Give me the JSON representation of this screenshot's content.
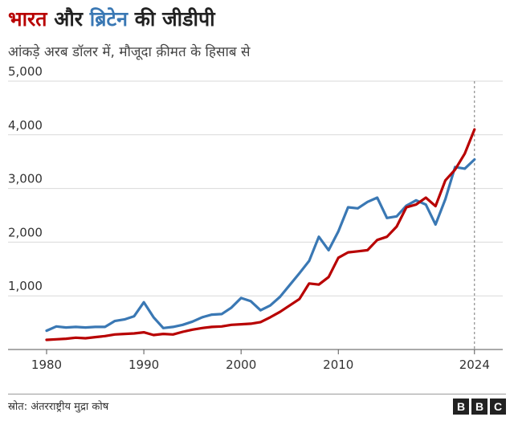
{
  "header": {
    "title_parts": [
      {
        "text": "भारत",
        "color": "#b80000"
      },
      {
        "text": " और ",
        "color": "#222222"
      },
      {
        "text": "ब्रिटेन",
        "color": "#3a78b4"
      },
      {
        "text": " की जीडीपी",
        "color": "#222222"
      }
    ],
    "subtitle": "आंकड़े अरब डॉलर में, मौजूदा क़ीमत के हिसाब से"
  },
  "footer": {
    "source": "स्रोत: अंतरराष्ट्रीय मुद्रा कोष",
    "logo_letters": [
      "B",
      "B",
      "C"
    ]
  },
  "chart_data": {
    "type": "line",
    "title": "भारत और ब्रिटेन की जीडीपी",
    "subtitle": "आंकड़े अरब डॉलर में, मौजूदा क़ीमत के हिसाब से",
    "xlabel": "",
    "ylabel": "",
    "xlim": [
      1980,
      2026
    ],
    "ylim": [
      0,
      5000
    ],
    "x_ticks": [
      1980,
      1990,
      2000,
      2010,
      2024
    ],
    "x_tick_labels": [
      "1980",
      "1990",
      "2000",
      "2010",
      "2024"
    ],
    "y_ticks": [
      1000,
      2000,
      3000,
      4000,
      5000
    ],
    "y_tick_labels": [
      "1,000",
      "2,000",
      "3,000",
      "4,000",
      "5,000"
    ],
    "grid": true,
    "reference_line": {
      "x": 2024,
      "style": "dashed"
    },
    "x": [
      1980,
      1981,
      1982,
      1983,
      1984,
      1985,
      1986,
      1987,
      1988,
      1989,
      1990,
      1991,
      1992,
      1993,
      1994,
      1995,
      1996,
      1997,
      1998,
      1999,
      2000,
      2001,
      2002,
      2003,
      2004,
      2005,
      2006,
      2007,
      2008,
      2009,
      2010,
      2011,
      2012,
      2013,
      2014,
      2015,
      2016,
      2017,
      2018,
      2019,
      2020,
      2021,
      2022,
      2023,
      2024,
      2025,
      2026
    ],
    "series": [
      {
        "color": "#3a78b4",
        "values": [
          350,
          430,
          410,
          420,
          410,
          420,
          420,
          530,
          560,
          620,
          880,
          600,
          400,
          420,
          460,
          520,
          600,
          650,
          660,
          780,
          960,
          900,
          730,
          820,
          980,
          1200,
          1420,
          1650,
          2100,
          1850,
          2200,
          2650,
          2630,
          2750,
          2830,
          2450,
          2480,
          2680,
          2780,
          2700,
          2330,
          2800,
          3400,
          3370,
          3540,
          null,
          null
        ]
      },
      {
        "color": "#b80000",
        "values": [
          180,
          190,
          200,
          220,
          210,
          230,
          250,
          280,
          290,
          300,
          320,
          270,
          290,
          280,
          330,
          370,
          400,
          420,
          430,
          460,
          470,
          480,
          510,
          600,
          700,
          820,
          940,
          1230,
          1210,
          1350,
          1710,
          1810,
          1830,
          1850,
          2040,
          2100,
          2290,
          2650,
          2700,
          2830,
          2670,
          3150,
          3350,
          3650,
          4100,
          null,
          null
        ]
      }
    ]
  }
}
